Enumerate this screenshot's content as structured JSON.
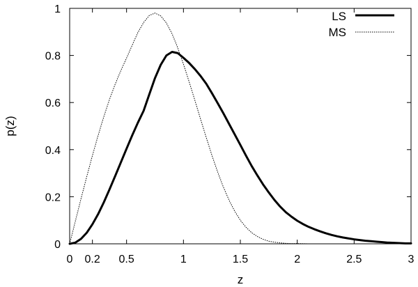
{
  "chart_data": {
    "type": "line",
    "title": "",
    "xlabel": "z",
    "ylabel": "p(z)",
    "xlim": [
      0,
      3
    ],
    "ylim": [
      0,
      1
    ],
    "x_ticks": [
      0,
      0.2,
      0.5,
      1,
      1.5,
      2,
      2.5,
      3
    ],
    "x_tick_labels": [
      "0",
      "0.2",
      "0.5",
      "1",
      "1.5",
      "2",
      "2.5",
      "3"
    ],
    "y_ticks": [
      0,
      0.2,
      0.4,
      0.6,
      0.8,
      1
    ],
    "y_tick_labels": [
      "0",
      "0.2",
      "0.4",
      "0.6",
      "0.8",
      "1"
    ],
    "grid": false,
    "legend_position": "top-right",
    "series": [
      {
        "name": "LS",
        "style": "solid-thick",
        "color": "#000000",
        "x": [
          0,
          0.05,
          0.1,
          0.15,
          0.2,
          0.25,
          0.3,
          0.35,
          0.4,
          0.45,
          0.5,
          0.55,
          0.6,
          0.65,
          0.7,
          0.75,
          0.8,
          0.85,
          0.9,
          0.95,
          1.0,
          1.05,
          1.1,
          1.15,
          1.2,
          1.25,
          1.3,
          1.35,
          1.4,
          1.45,
          1.5,
          1.55,
          1.6,
          1.65,
          1.7,
          1.75,
          1.8,
          1.85,
          1.9,
          1.95,
          2.0,
          2.05,
          2.1,
          2.15,
          2.2,
          2.25,
          2.3,
          2.35,
          2.4,
          2.45,
          2.5,
          2.55,
          2.6,
          2.65,
          2.7,
          2.75,
          2.8,
          2.85,
          2.9,
          2.95,
          3.0
        ],
        "y": [
          0.0,
          0.005,
          0.021,
          0.047,
          0.083,
          0.126,
          0.176,
          0.231,
          0.288,
          0.346,
          0.404,
          0.461,
          0.515,
          0.565,
          0.635,
          0.704,
          0.76,
          0.8,
          0.815,
          0.81,
          0.79,
          0.768,
          0.742,
          0.713,
          0.68,
          0.64,
          0.598,
          0.555,
          0.51,
          0.465,
          0.42,
          0.374,
          0.33,
          0.29,
          0.252,
          0.218,
          0.186,
          0.158,
          0.134,
          0.115,
          0.098,
          0.084,
          0.072,
          0.062,
          0.053,
          0.045,
          0.038,
          0.032,
          0.027,
          0.023,
          0.019,
          0.016,
          0.013,
          0.011,
          0.009,
          0.007,
          0.005,
          0.004,
          0.003,
          0.002,
          0.002
        ]
      },
      {
        "name": "MS",
        "style": "dotted",
        "color": "#000000",
        "x": [
          0,
          0.05,
          0.1,
          0.15,
          0.2,
          0.25,
          0.3,
          0.35,
          0.4,
          0.45,
          0.5,
          0.55,
          0.6,
          0.65,
          0.7,
          0.75,
          0.8,
          0.85,
          0.9,
          0.95,
          1.0,
          1.05,
          1.1,
          1.15,
          1.2,
          1.25,
          1.3,
          1.35,
          1.4,
          1.45,
          1.5,
          1.55,
          1.6,
          1.65,
          1.7,
          1.75,
          1.8,
          1.85,
          1.9,
          1.95,
          2.0,
          2.1,
          2.2,
          2.4,
          2.6,
          2.8,
          3.0
        ],
        "y": [
          0.0,
          0.096,
          0.192,
          0.285,
          0.375,
          0.46,
          0.54,
          0.613,
          0.678,
          0.736,
          0.789,
          0.844,
          0.898,
          0.94,
          0.97,
          0.98,
          0.968,
          0.938,
          0.892,
          0.832,
          0.763,
          0.688,
          0.61,
          0.53,
          0.452,
          0.376,
          0.306,
          0.242,
          0.186,
          0.139,
          0.1,
          0.07,
          0.047,
          0.031,
          0.019,
          0.011,
          0.007,
          0.004,
          0.002,
          0.001,
          0.001,
          0.0,
          0.0,
          0.0,
          0.0,
          0.0,
          0.0
        ]
      }
    ]
  }
}
